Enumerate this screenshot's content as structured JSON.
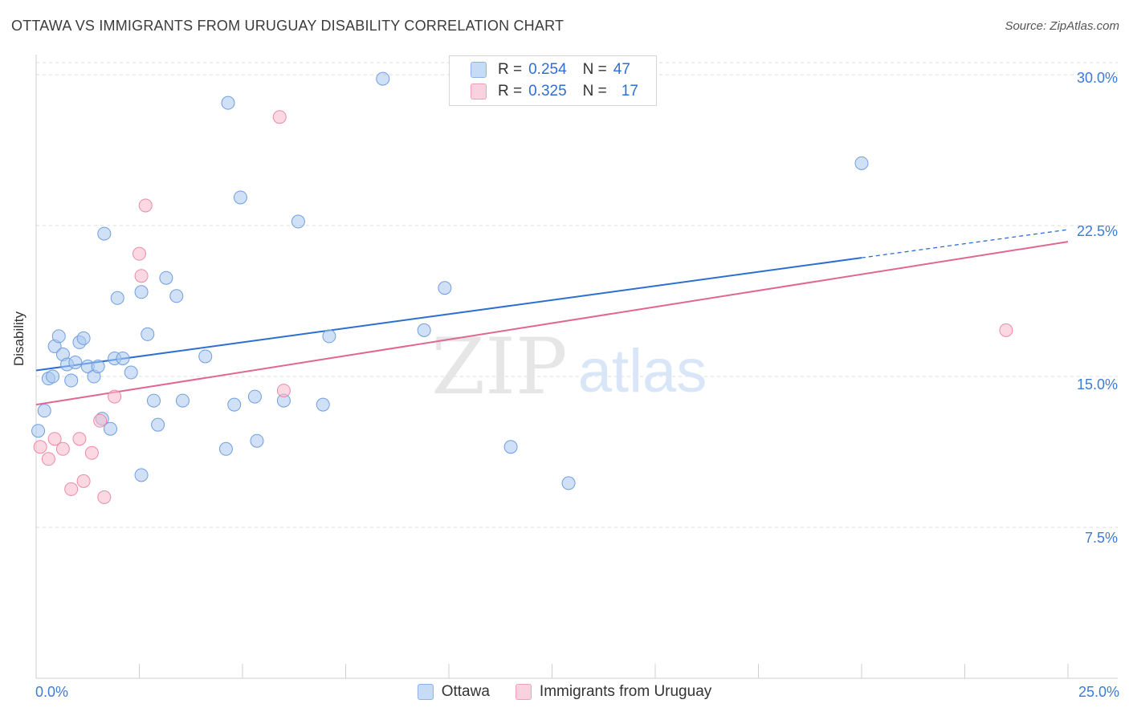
{
  "title": "OTTAWA VS IMMIGRANTS FROM URUGUAY DISABILITY CORRELATION CHART",
  "source": "Source: ZipAtlas.com",
  "watermark": {
    "zip": "ZIP",
    "atlas": "atlas"
  },
  "legend": {
    "rows": [
      {
        "r_label": "R = ",
        "r_value": "0.254",
        "n_label": "N = ",
        "n_value": "47",
        "color": "#a9c8f0"
      },
      {
        "r_label": "R = ",
        "r_value": "0.325",
        "n_label": "N = ",
        "n_value": "17",
        "color": "#f7b8cb"
      }
    ]
  },
  "bottom_legend": [
    "Ottawa",
    "Immigrants from Uruguay"
  ],
  "chart_data": {
    "type": "scatter",
    "title": "OTTAWA VS IMMIGRANTS FROM URUGUAY DISABILITY CORRELATION CHART",
    "xlabel": "",
    "ylabel": "Disability",
    "xlim": [
      0,
      25
    ],
    "ylim": [
      0,
      31.0
    ],
    "x_tick_labels": [
      "0.0%",
      "25.0%"
    ],
    "y_ticks": [
      7.5,
      15.0,
      22.5,
      30.0
    ],
    "y_tick_labels": [
      "7.5%",
      "15.0%",
      "22.5%",
      "30.0%"
    ],
    "grid": true,
    "series": [
      {
        "name": "Ottawa",
        "color": "#a9c8f0",
        "stroke": "#6f9ee0",
        "trend_color": "#2d6fd0",
        "trend": {
          "x0": 0,
          "y0": 15.3,
          "x1": 20.0,
          "y1": 20.9,
          "dash_to_x": 25,
          "dash_to_y": 22.3
        },
        "points": [
          [
            0.05,
            12.3
          ],
          [
            0.2,
            13.3
          ],
          [
            0.3,
            14.9
          ],
          [
            0.4,
            15.0
          ],
          [
            0.45,
            16.5
          ],
          [
            0.55,
            17.0
          ],
          [
            0.65,
            16.1
          ],
          [
            0.75,
            15.6
          ],
          [
            0.85,
            14.8
          ],
          [
            0.95,
            15.7
          ],
          [
            1.05,
            16.7
          ],
          [
            1.15,
            16.9
          ],
          [
            1.25,
            15.5
          ],
          [
            1.4,
            15.0
          ],
          [
            1.5,
            15.5
          ],
          [
            1.6,
            12.9
          ],
          [
            1.65,
            22.1
          ],
          [
            1.8,
            12.4
          ],
          [
            1.9,
            15.9
          ],
          [
            1.97,
            18.9
          ],
          [
            2.1,
            15.9
          ],
          [
            2.3,
            15.2
          ],
          [
            2.55,
            10.1
          ],
          [
            2.55,
            19.2
          ],
          [
            2.7,
            17.1
          ],
          [
            2.85,
            13.8
          ],
          [
            2.95,
            12.6
          ],
          [
            3.15,
            19.9
          ],
          [
            3.4,
            19.0
          ],
          [
            3.55,
            13.8
          ],
          [
            4.1,
            16.0
          ],
          [
            4.6,
            11.4
          ],
          [
            4.65,
            28.6
          ],
          [
            4.8,
            13.6
          ],
          [
            4.95,
            23.9
          ],
          [
            5.3,
            14.0
          ],
          [
            5.35,
            11.8
          ],
          [
            6.0,
            13.8
          ],
          [
            6.35,
            22.7
          ],
          [
            6.95,
            13.6
          ],
          [
            7.1,
            17.0
          ],
          [
            8.4,
            29.8
          ],
          [
            9.4,
            17.3
          ],
          [
            9.9,
            19.4
          ],
          [
            11.5,
            11.5
          ],
          [
            12.9,
            9.7
          ],
          [
            20.0,
            25.6
          ]
        ]
      },
      {
        "name": "Immigrants from Uruguay",
        "color": "#f7b8cb",
        "stroke": "#ec8aa8",
        "trend_color": "#e0678f",
        "trend": {
          "x0": 0,
          "y0": 13.6,
          "x1": 25,
          "y1": 21.7
        },
        "points": [
          [
            0.1,
            11.5
          ],
          [
            0.3,
            10.9
          ],
          [
            0.45,
            11.9
          ],
          [
            0.65,
            11.4
          ],
          [
            0.85,
            9.4
          ],
          [
            1.05,
            11.9
          ],
          [
            1.15,
            9.8
          ],
          [
            1.35,
            11.2
          ],
          [
            1.55,
            12.8
          ],
          [
            1.65,
            9.0
          ],
          [
            1.9,
            14.0
          ],
          [
            2.5,
            21.1
          ],
          [
            2.55,
            20.0
          ],
          [
            2.65,
            23.5
          ],
          [
            5.9,
            27.9
          ],
          [
            6.0,
            14.3
          ],
          [
            23.5,
            17.3
          ]
        ]
      }
    ]
  }
}
